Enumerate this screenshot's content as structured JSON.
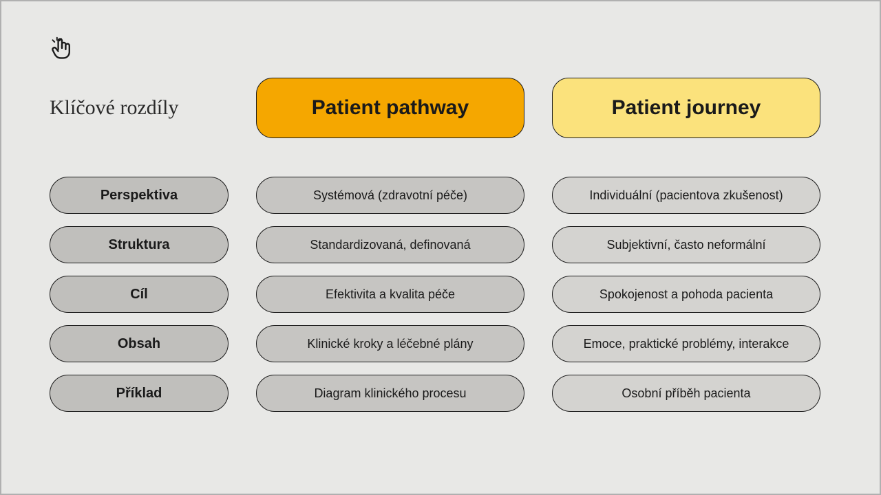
{
  "title": "Klíčové rozdíly",
  "columns": {
    "pathway": {
      "label": "Patient pathway",
      "bg": "#F5A700"
    },
    "journey": {
      "label": "Patient journey",
      "bg": "#FBE27C"
    }
  },
  "rows": [
    {
      "label": "Perspektiva",
      "pathway": "Systémová (zdravotní péče)",
      "journey": "Individuální (pacientova zkušenost)"
    },
    {
      "label": "Struktura",
      "pathway": "Standardizovaná, definovaná",
      "journey": "Subjektivní, často neformální"
    },
    {
      "label": "Cíl",
      "pathway": "Efektivita a kvalita péče",
      "journey": "Spokojenost a pohoda pacienta"
    },
    {
      "label": "Obsah",
      "pathway": "Klinické kroky a léčebné plány",
      "journey": "Emoce, praktické problémy, interakce"
    },
    {
      "label": "Příklad",
      "pathway": "Diagram klinického procesu",
      "journey": "Osobní příběh pacienta"
    }
  ],
  "colors": {
    "page_bg": "#E8E8E6",
    "label_pill_bg": "#C0BFBC",
    "pathway_cell_bg": "#C6C5C2",
    "journey_cell_bg": "#D4D3D0",
    "border": "#1a1a1a"
  }
}
